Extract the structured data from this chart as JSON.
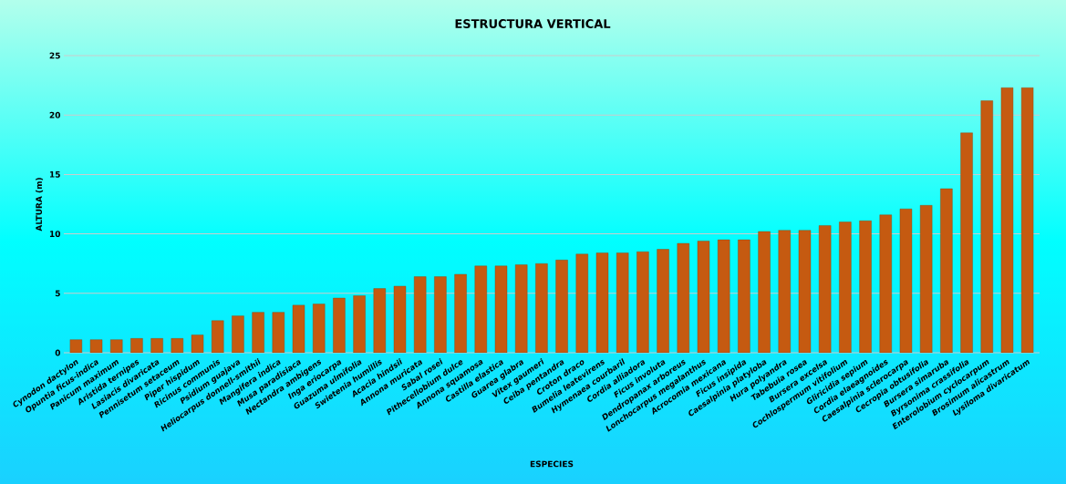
{
  "chart_data": {
    "type": "bar",
    "title": "ESTRUCTURA VERTICAL",
    "xlabel": "ESPECIES",
    "ylabel": "ALTURA (m)",
    "categories": [
      "Cynodon dactylon",
      "Opuntia ficus-indica",
      "Panicum maximum",
      "Aristida ternipes",
      "Lasiacis divaricata",
      "Pennisetum setaceum",
      "Piper hispidum",
      "Ricinus communis",
      "Psidium guajava",
      "Heliocarpus donnell-smithii",
      "Mangifera indica",
      "Musa paradisiaca",
      "Nectandra ambigens",
      "Inga eriocarpa",
      "Guazuma ulmifolia",
      "Swietenia humillis",
      "Acacia hindsii",
      "Annona muricata",
      "Sabal rosei",
      "Pithecellobium dulce",
      "Annona squamosa",
      "Castilla elastica",
      "Guarea glabra",
      "Vitex gaumeri",
      "Ceiba pentandra",
      "Croton draco",
      "Bumelia leatevirens",
      "Hymenaea courbaril",
      "Cordia alliadora",
      "Ficus involuta",
      "Dendropanax arboreus",
      "Lonchocarpus megalanthus",
      "Acrocomia mexicana",
      "Ficus insipida",
      "Caesalpinia platyloba",
      "Hura polyandra",
      "Tabebuia rosea",
      "Bursera excelsa",
      "Cochlospermum vitifolium",
      "Gliricidia sepium",
      "Cordia elaeagnoides",
      "Caesalpinia sclerocarpa",
      "Cecropia obtusifolia",
      "Bursera simaruba",
      "Byrsonima crassifolia",
      "Enterolobium cyclocarpum",
      "Brosimum alicastrum",
      "Lysiloma divaricatum"
    ],
    "values": [
      1.1,
      1.1,
      1.1,
      1.2,
      1.2,
      1.2,
      1.5,
      2.7,
      3.1,
      3.4,
      3.4,
      4.0,
      4.1,
      4.6,
      4.8,
      5.4,
      5.6,
      6.4,
      6.4,
      6.6,
      7.3,
      7.3,
      7.4,
      7.5,
      7.8,
      8.3,
      8.4,
      8.4,
      8.5,
      8.7,
      9.2,
      9.4,
      9.5,
      9.5,
      10.2,
      10.3,
      10.3,
      10.7,
      11.0,
      11.1,
      11.6,
      12.1,
      12.4,
      13.8,
      18.5,
      21.2,
      22.3,
      22.3
    ],
    "color": "#c55a11",
    "ylim": [
      0,
      25
    ],
    "yticks": [
      0,
      5,
      10,
      15,
      20,
      25
    ],
    "grid": "y"
  }
}
